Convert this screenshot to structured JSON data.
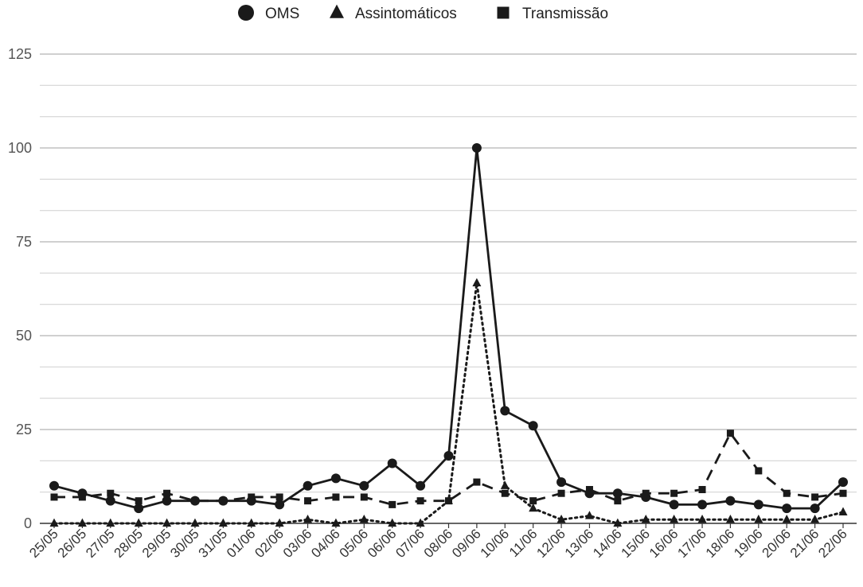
{
  "chart_data": {
    "type": "line",
    "title": "",
    "xlabel": "",
    "ylabel": "",
    "ylim": [
      0,
      125
    ],
    "yticks": [
      0,
      25,
      50,
      75,
      100,
      125
    ],
    "grid": true,
    "legend_position": "top-center",
    "categories": [
      "25/05",
      "26/05",
      "27/05",
      "28/05",
      "29/05",
      "30/05",
      "31/05",
      "01/06",
      "02/06",
      "03/06",
      "04/06",
      "05/06",
      "06/06",
      "07/06",
      "08/06",
      "09/06",
      "10/06",
      "11/06",
      "12/06",
      "13/06",
      "14/06",
      "15/06",
      "16/06",
      "17/06",
      "18/06",
      "19/06",
      "20/06",
      "21/06",
      "22/06"
    ],
    "series": [
      {
        "name": "OMS",
        "marker": "circle",
        "line_style": "solid",
        "values": [
          10,
          8,
          6,
          4,
          6,
          6,
          6,
          6,
          5,
          10,
          12,
          10,
          16,
          10,
          18,
          100,
          30,
          26,
          11,
          8,
          8,
          7,
          5,
          5,
          6,
          5,
          4,
          4,
          11
        ]
      },
      {
        "name": "Assintomáticos",
        "marker": "triangle",
        "line_style": "dotted",
        "values": [
          0,
          0,
          0,
          0,
          0,
          0,
          0,
          0,
          0,
          1,
          0,
          1,
          0,
          0,
          6,
          64,
          10,
          4,
          1,
          2,
          0,
          1,
          1,
          1,
          1,
          1,
          1,
          1,
          3
        ]
      },
      {
        "name": "Transmissão",
        "marker": "square",
        "line_style": "dashed",
        "values": [
          7,
          7,
          8,
          6,
          8,
          6,
          6,
          7,
          7,
          6,
          7,
          7,
          5,
          6,
          6,
          11,
          8,
          6,
          8,
          9,
          6,
          8,
          8,
          9,
          24,
          14,
          8,
          7,
          8
        ]
      }
    ],
    "colors": {
      "line": "#1a1a1a",
      "grid": "#d4d4d4",
      "axis": "#333333",
      "tick_text": "#555555"
    }
  }
}
